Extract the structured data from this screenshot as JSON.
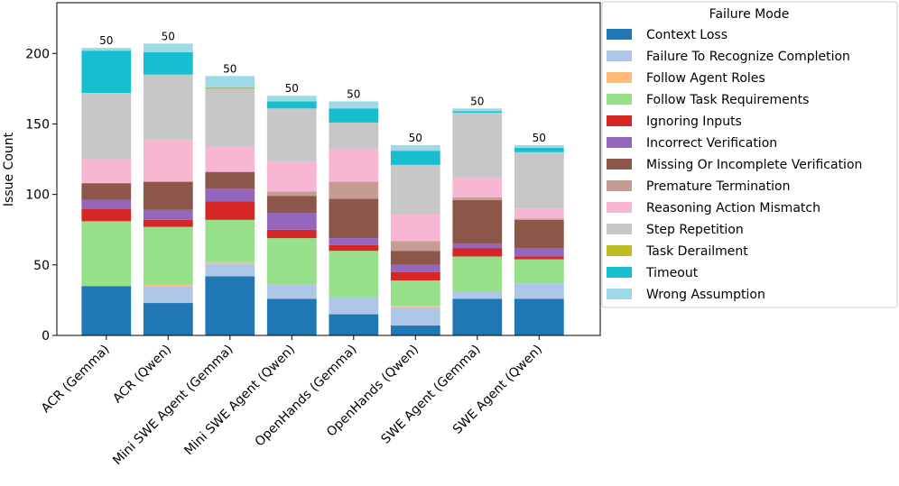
{
  "chart_data": {
    "type": "stacked_bar",
    "ylabel": "Issue Count",
    "categories": [
      "ACR (Gemma)",
      "ACR (Qwen)",
      "Mini SWE Agent (Gemma)",
      "Mini SWE Agent (Qwen)",
      "OpenHands (Gemma)",
      "OpenHands (Qwen)",
      "SWE Agent (Gemma)",
      "SWE Agent (Qwen)"
    ],
    "annotations": [
      50,
      50,
      50,
      50,
      50,
      50,
      50,
      50
    ],
    "legend_title": "Failure Mode",
    "legend": "outside upper right",
    "ylim": [
      0,
      236
    ],
    "yticks": [
      0,
      50,
      100,
      150,
      200
    ],
    "series": [
      {
        "name": "Context Loss",
        "color": "#1f77b4",
        "values": [
          35,
          23,
          42,
          26,
          15,
          7,
          26,
          26
        ]
      },
      {
        "name": "Failure To Recognize Completion",
        "color": "#aec7e8",
        "values": [
          0,
          12,
          9,
          10,
          12,
          13,
          5,
          11
        ]
      },
      {
        "name": "Follow Agent Roles",
        "color": "#ffbb78",
        "values": [
          0,
          1,
          1,
          0,
          0,
          1,
          0,
          0
        ]
      },
      {
        "name": "Follow Task Requirements",
        "color": "#98df8a",
        "values": [
          46,
          41,
          30,
          33,
          33,
          18,
          25,
          17
        ]
      },
      {
        "name": "Ignoring Inputs",
        "color": "#d62728",
        "values": [
          9,
          5,
          13,
          6,
          4,
          6,
          6,
          2
        ]
      },
      {
        "name": "Incorrect Verification",
        "color": "#9467bd",
        "values": [
          6,
          7,
          9,
          12,
          5,
          5,
          3,
          6
        ]
      },
      {
        "name": "Missing Or Incomplete Verification",
        "color": "#8c564b",
        "values": [
          12,
          20,
          12,
          12,
          28,
          10,
          31,
          20
        ]
      },
      {
        "name": "Premature Termination",
        "color": "#c49c94",
        "values": [
          0,
          0,
          0,
          3,
          12,
          7,
          2,
          1
        ]
      },
      {
        "name": "Reasoning Action Mismatch",
        "color": "#f7b6d2",
        "values": [
          17,
          30,
          18,
          21,
          23,
          19,
          14,
          7
        ]
      },
      {
        "name": "Step Repetition",
        "color": "#c7c7c7",
        "values": [
          47,
          46,
          41,
          38,
          19,
          35,
          46,
          40
        ]
      },
      {
        "name": "Task Derailment",
        "color": "#bcbd22",
        "values": [
          0,
          0,
          1,
          0,
          0,
          0,
          0,
          0
        ]
      },
      {
        "name": "Timeout",
        "color": "#17becf",
        "values": [
          30,
          16,
          0,
          5,
          10,
          10,
          1,
          3
        ]
      },
      {
        "name": "Wrong Assumption",
        "color": "#9edae5",
        "values": [
          2,
          6,
          8,
          4,
          5,
          4,
          2,
          2
        ]
      }
    ]
  }
}
